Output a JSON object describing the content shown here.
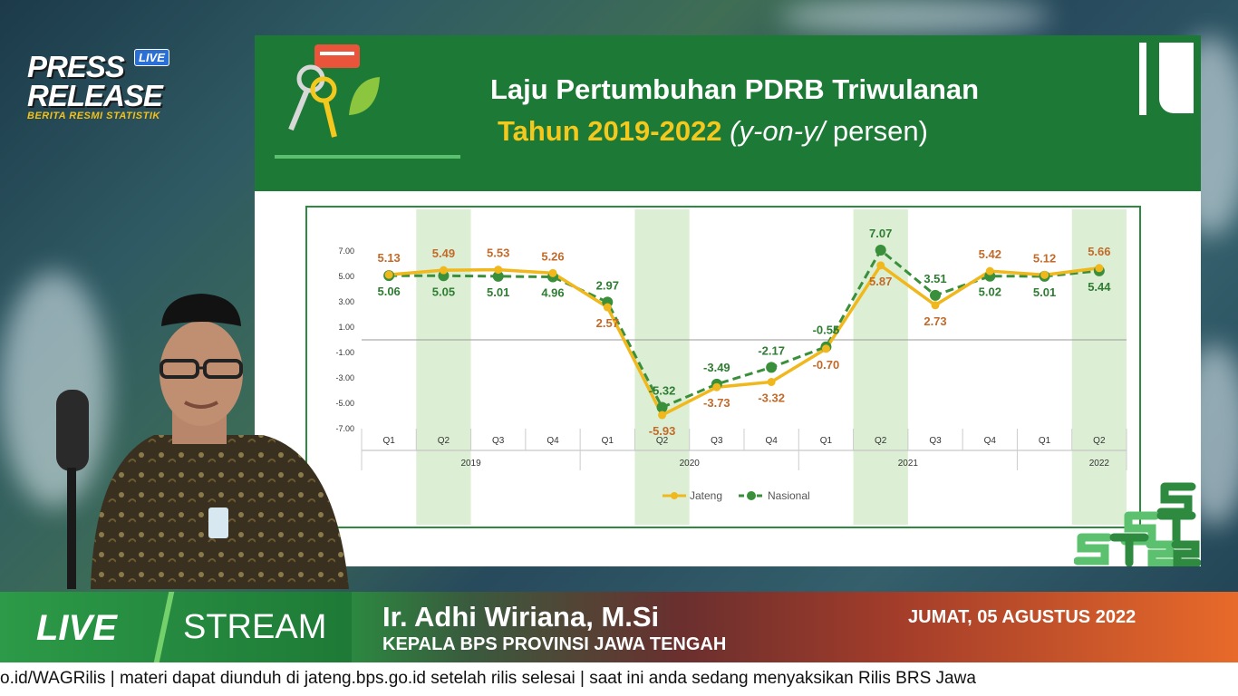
{
  "overlay": {
    "press_release_line1": "PRESS",
    "press_release_line2": "RELEASE",
    "press_release_sub": "BERITA RESMI STATISTIK",
    "live_badge": "LIVE"
  },
  "slide": {
    "title_line1": "Laju Pertumbuhan PDRB Triwulanan",
    "title_line2_prefix": "Tahun 2019-2022 ",
    "title_line2_italic": "(y-on-y/",
    "title_line2_suffix": " persen)",
    "colors": {
      "header": "#1d7a36",
      "accent": "#f4c81c",
      "jateng": "#f0b81c",
      "nasional": "#3a8f3a"
    }
  },
  "chart_data": {
    "type": "line",
    "categories": [
      "Q1",
      "Q2",
      "Q3",
      "Q4",
      "Q1",
      "Q2",
      "Q3",
      "Q4",
      "Q1",
      "Q2",
      "Q3",
      "Q4",
      "Q1",
      "Q2"
    ],
    "years": [
      "2019",
      "2020",
      "2021",
      "2022"
    ],
    "series": [
      {
        "name": "Jateng",
        "values": [
          5.13,
          5.49,
          5.53,
          5.26,
          2.57,
          -5.93,
          -3.73,
          -3.32,
          -0.7,
          5.87,
          2.73,
          5.42,
          5.12,
          5.66
        ],
        "color": "#f0b81c"
      },
      {
        "name": "Nasional",
        "values": [
          5.06,
          5.05,
          5.01,
          4.96,
          2.97,
          -5.32,
          -3.49,
          -2.17,
          -0.55,
          7.07,
          3.51,
          5.02,
          5.01,
          5.44
        ],
        "color": "#3a8f3a",
        "dashed": true
      }
    ],
    "jateng_labels": [
      "5.13",
      "5.49",
      "5.53",
      "5.26",
      "2.57",
      "-5.93",
      "-3.73",
      "-3.32",
      "-0.70",
      "5.87",
      "2.73",
      "5.42",
      "5.12",
      "5.66"
    ],
    "nasional_labels": [
      "5.06",
      "5.05",
      "5.01",
      "4.96",
      "2.97",
      "-5.32",
      "-3.49",
      "-2.17",
      "-0.55",
      "7.07",
      "3.51",
      "5.02",
      "5.01",
      "5.44"
    ],
    "yticks": [
      "7.00",
      "5.00",
      "3.00",
      "1.00",
      "-1.00",
      "-3.00",
      "-5.00",
      "-7.00"
    ],
    "ylim": [
      -7,
      7
    ],
    "highlighted_quarters": [
      "Q2"
    ],
    "legend_position": "bottom-center"
  },
  "lower_third": {
    "live_label": "LIVE",
    "stream_label": "STREAM",
    "speaker_name": "Ir. Adhi Wiriana, M.Si",
    "speaker_role": "KEPALA BPS PROVINSI JAWA TENGAH",
    "date": "JUMAT, 05 AGUSTUS 2022"
  },
  "ticker": {
    "text": "o.id/WAGRilis  |  materi dapat diunduh di jateng.bps.go.id setelah rilis selesai  |  saat ini anda sedang menyaksikan Rilis BRS Jawa"
  }
}
